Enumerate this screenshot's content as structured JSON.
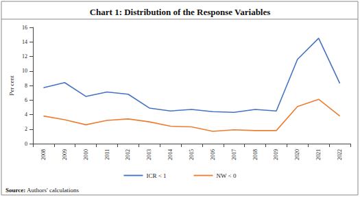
{
  "chart_data": {
    "type": "line",
    "title": "Chart 1: Distribution of the Response Variables",
    "y_label": "Per cent",
    "annotations": [
      "Source: Authors' calculations"
    ],
    "categories": [
      "2008",
      "2009",
      "2010",
      "2011",
      "2012",
      "2013",
      "2014",
      "2015",
      "2016",
      "2017",
      "2018",
      "2019",
      "2020",
      "2021",
      "2022"
    ],
    "series": [
      {
        "name": "ICR < 1",
        "color": "#4472c4",
        "values": [
          7.7,
          8.4,
          6.5,
          7.1,
          6.8,
          4.9,
          4.5,
          4.7,
          4.4,
          4.3,
          4.7,
          4.5,
          11.6,
          14.5,
          8.3
        ]
      },
      {
        "name": "NW < 0",
        "color": "#ed7d31",
        "values": [
          3.8,
          3.3,
          2.6,
          3.2,
          3.4,
          3.0,
          2.4,
          2.3,
          1.7,
          1.9,
          1.8,
          1.8,
          5.1,
          6.1,
          3.8
        ]
      }
    ],
    "ylim": [
      0,
      16
    ],
    "yticks": [
      0,
      2,
      4,
      6,
      8,
      10,
      12,
      14,
      16
    ],
    "grid": false,
    "legend": "bottom"
  }
}
